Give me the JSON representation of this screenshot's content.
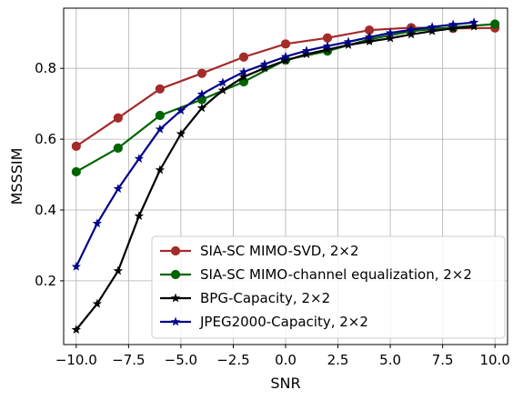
{
  "chart_data": {
    "type": "line",
    "xlabel": "SNR",
    "ylabel": "MSSSIM",
    "xlim": [
      -10.6,
      10.6
    ],
    "ylim": [
      0.02,
      0.97
    ],
    "xticks": [
      -10,
      -7.5,
      -5,
      -2.5,
      0,
      2.5,
      5,
      7.5,
      10
    ],
    "xtick_labels": [
      "−10.0",
      "−7.5",
      "−5.0",
      "−2.5",
      "0.0",
      "2.5",
      "5.0",
      "7.5",
      "10.0"
    ],
    "yticks": [
      0.2,
      0.4,
      0.6,
      0.8
    ],
    "ytick_labels": [
      "0.2",
      "0.4",
      "0.6",
      "0.8"
    ],
    "grid": true,
    "legend_position": "lower-right",
    "series": [
      {
        "name": "SIA-SC MIMO-SVD, 2×2",
        "color": "#a52a2a",
        "marker": "circle",
        "x": [
          -10,
          -8,
          -6,
          -4,
          -2,
          0,
          2,
          4,
          6,
          8,
          10
        ],
        "y": [
          0.58,
          0.66,
          0.742,
          0.786,
          0.832,
          0.869,
          0.886,
          0.908,
          0.915,
          0.913,
          0.914
        ]
      },
      {
        "name": "SIA-SC MIMO-channel equalization, 2×2",
        "color": "#006400",
        "marker": "circle",
        "x": [
          -10,
          -8,
          -6,
          -4,
          -2,
          0,
          2,
          4,
          6,
          8,
          10
        ],
        "y": [
          0.508,
          0.575,
          0.667,
          0.712,
          0.762,
          0.824,
          0.849,
          0.882,
          0.905,
          0.916,
          0.925
        ]
      },
      {
        "name": "BPG-Capacity, 2×2",
        "color": "#000000",
        "marker": "star",
        "x": [
          -10,
          -9,
          -8,
          -7,
          -6,
          -5,
          -4,
          -3,
          -2,
          -1,
          0,
          1,
          2,
          3,
          4,
          5,
          6,
          7,
          8,
          9
        ],
        "y": [
          0.062,
          0.135,
          0.228,
          0.383,
          0.513,
          0.615,
          0.688,
          0.738,
          0.776,
          0.801,
          0.822,
          0.84,
          0.853,
          0.866,
          0.876,
          0.885,
          0.896,
          0.905,
          0.913,
          0.918
        ]
      },
      {
        "name": "JPEG2000-Capacity, 2×2",
        "color": "#00008b",
        "marker": "star",
        "x": [
          -10,
          -9,
          -8,
          -7,
          -6,
          -5,
          -4,
          -3,
          -2,
          -1,
          0,
          1,
          2,
          3,
          4,
          5,
          6,
          7,
          8,
          9
        ],
        "y": [
          0.24,
          0.362,
          0.46,
          0.545,
          0.628,
          0.681,
          0.727,
          0.76,
          0.79,
          0.812,
          0.833,
          0.85,
          0.863,
          0.875,
          0.888,
          0.9,
          0.909,
          0.917,
          0.924,
          0.93
        ]
      }
    ]
  }
}
